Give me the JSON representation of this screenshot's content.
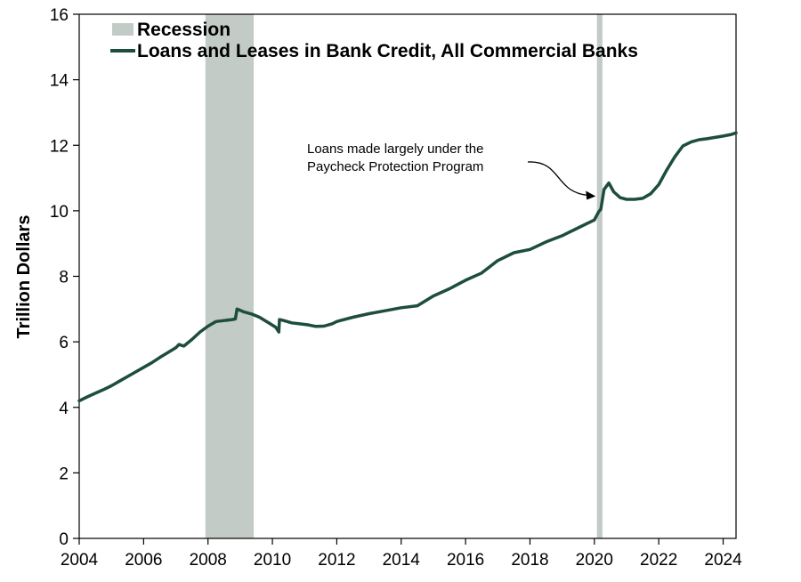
{
  "chart_data": {
    "type": "line",
    "title": "",
    "xlabel": "",
    "ylabel": "Trillion Dollars",
    "xlim": [
      2004,
      2024.4
    ],
    "ylim": [
      0,
      16
    ],
    "x_ticks": [
      "2004",
      "2006",
      "2008",
      "2010",
      "2012",
      "2014",
      "2016",
      "2018",
      "2020",
      "2022",
      "2024"
    ],
    "y_ticks": [
      "0",
      "2",
      "4",
      "6",
      "8",
      "10",
      "12",
      "14",
      "16"
    ],
    "grid": false,
    "legend_position": "top-left",
    "legend": {
      "recession_label": "Recession",
      "series_label": "Loans and Leases in Bank Credit, All Commercial Banks"
    },
    "recessions": [
      {
        "start": 2007.92,
        "end": 2009.42
      },
      {
        "start": 2020.08,
        "end": 2020.25
      }
    ],
    "colors": {
      "line": "#1d4d3f",
      "recession": "#c3cbc6"
    },
    "annotation": {
      "lines": [
        "Loans made largely under the",
        "Paycheck Protection Program"
      ],
      "target_x": 2020.15,
      "target_y": 10.5
    },
    "series": [
      {
        "name": "Loans and Leases in Bank Credit, All Commercial Banks",
        "x": [
          2004.0,
          2004.25,
          2004.5,
          2004.75,
          2005.0,
          2005.25,
          2005.5,
          2005.75,
          2006.0,
          2006.25,
          2006.5,
          2006.75,
          2007.0,
          2007.1,
          2007.25,
          2007.5,
          2007.75,
          2008.0,
          2008.25,
          2008.5,
          2008.75,
          2008.85,
          2008.9,
          2009.1,
          2009.35,
          2009.6,
          2009.85,
          2010.1,
          2010.2,
          2010.22,
          2010.35,
          2010.6,
          2010.85,
          2011.1,
          2011.35,
          2011.6,
          2011.85,
          2012.0,
          2012.5,
          2013.0,
          2013.5,
          2014.0,
          2014.5,
          2015.0,
          2015.5,
          2016.0,
          2016.5,
          2017.0,
          2017.5,
          2018.0,
          2018.5,
          2019.0,
          2019.5,
          2020.0,
          2020.13,
          2020.2,
          2020.3,
          2020.45,
          2020.6,
          2020.8,
          2021.0,
          2021.25,
          2021.5,
          2021.75,
          2022.0,
          2022.25,
          2022.5,
          2022.75,
          2023.0,
          2023.25,
          2023.5,
          2023.75,
          2024.0,
          2024.25,
          2024.4
        ],
        "values": [
          4.2,
          4.32,
          4.43,
          4.54,
          4.66,
          4.8,
          4.94,
          5.08,
          5.22,
          5.36,
          5.52,
          5.67,
          5.82,
          5.92,
          5.87,
          6.07,
          6.3,
          6.48,
          6.62,
          6.65,
          6.68,
          6.7,
          7.0,
          6.92,
          6.85,
          6.75,
          6.6,
          6.45,
          6.3,
          6.68,
          6.65,
          6.58,
          6.55,
          6.52,
          6.47,
          6.48,
          6.55,
          6.62,
          6.75,
          6.86,
          6.95,
          7.04,
          7.1,
          7.4,
          7.62,
          7.88,
          8.1,
          8.48,
          8.72,
          8.82,
          9.05,
          9.24,
          9.48,
          9.72,
          9.96,
          10.05,
          10.65,
          10.85,
          10.58,
          10.4,
          10.35,
          10.35,
          10.38,
          10.52,
          10.8,
          11.25,
          11.65,
          11.98,
          12.1,
          12.17,
          12.2,
          12.24,
          12.28,
          12.33,
          12.38
        ]
      }
    ]
  }
}
